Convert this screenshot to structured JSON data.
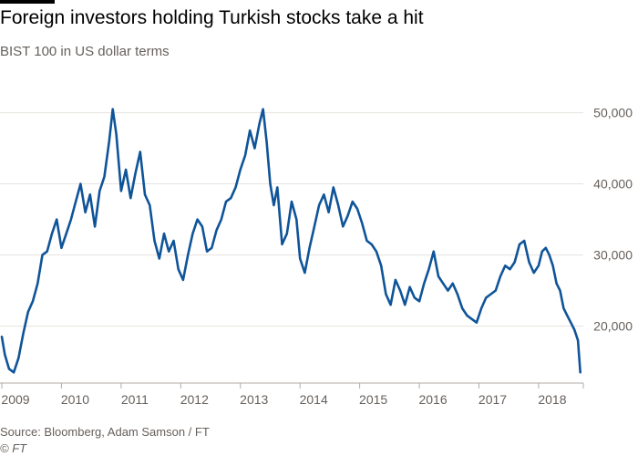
{
  "header": {
    "title": "Foreign investors holding Turkish stocks take a hit",
    "subtitle": "BIST 100 in US dollar terms"
  },
  "footer": {
    "source": "Source: Bloomberg, Adam Samson / FT",
    "credit": "© FT"
  },
  "colors": {
    "line": "#0f5499",
    "grid": "#e6e2de",
    "text": "#66605c"
  },
  "chart_data": {
    "type": "line",
    "title": "Foreign investors holding Turkish stocks take a hit",
    "subtitle": "BIST 100 in US dollar terms",
    "xlabel": "",
    "ylabel": "",
    "xlim": [
      2009.0,
      2018.75
    ],
    "ylim": [
      12000,
      52000
    ],
    "y_ticks": [
      20000,
      30000,
      40000,
      50000
    ],
    "y_tick_labels": [
      "20,000",
      "30,000",
      "40,000",
      "50,000"
    ],
    "x_ticks": [
      2009,
      2010,
      2011,
      2012,
      2013,
      2014,
      2015,
      2016,
      2017,
      2018
    ],
    "x_tick_labels": [
      "2009",
      "2010",
      "2011",
      "2012",
      "2013",
      "2014",
      "2015",
      "2016",
      "2017",
      "2018"
    ],
    "grid": true,
    "series": [
      {
        "name": "BIST 100 (USD)",
        "x": [
          2009.0,
          2009.05,
          2009.12,
          2009.2,
          2009.28,
          2009.36,
          2009.44,
          2009.52,
          2009.6,
          2009.68,
          2009.76,
          2009.84,
          2009.92,
          2010.0,
          2010.08,
          2010.16,
          2010.24,
          2010.32,
          2010.4,
          2010.48,
          2010.56,
          2010.64,
          2010.72,
          2010.8,
          2010.86,
          2010.92,
          2011.0,
          2011.08,
          2011.16,
          2011.24,
          2011.32,
          2011.4,
          2011.48,
          2011.56,
          2011.64,
          2011.72,
          2011.8,
          2011.88,
          2011.96,
          2012.04,
          2012.12,
          2012.2,
          2012.28,
          2012.36,
          2012.44,
          2012.52,
          2012.6,
          2012.68,
          2012.76,
          2012.84,
          2012.92,
          2013.0,
          2013.08,
          2013.16,
          2013.24,
          2013.32,
          2013.38,
          2013.44,
          2013.5,
          2013.56,
          2013.62,
          2013.7,
          2013.78,
          2013.86,
          2013.94,
          2014.0,
          2014.08,
          2014.16,
          2014.24,
          2014.32,
          2014.4,
          2014.48,
          2014.56,
          2014.64,
          2014.72,
          2014.8,
          2014.88,
          2014.96,
          2015.04,
          2015.12,
          2015.2,
          2015.28,
          2015.36,
          2015.44,
          2015.52,
          2015.6,
          2015.68,
          2015.76,
          2015.84,
          2015.92,
          2016.0,
          2016.08,
          2016.16,
          2016.24,
          2016.32,
          2016.4,
          2016.48,
          2016.56,
          2016.64,
          2016.72,
          2016.8,
          2016.88,
          2016.96,
          2017.04,
          2017.12,
          2017.2,
          2017.28,
          2017.36,
          2017.44,
          2017.52,
          2017.6,
          2017.68,
          2017.76,
          2017.84,
          2017.92,
          2018.0,
          2018.06,
          2018.12,
          2018.18,
          2018.24,
          2018.3,
          2018.36,
          2018.42,
          2018.48,
          2018.54,
          2018.6,
          2018.66,
          2018.7
        ],
        "y": [
          18500,
          16000,
          14000,
          13500,
          15500,
          19000,
          22000,
          23500,
          26000,
          30000,
          30500,
          33000,
          35000,
          31000,
          33000,
          35000,
          37500,
          40000,
          36000,
          38500,
          34000,
          39000,
          41000,
          46000,
          50500,
          47000,
          39000,
          42000,
          38000,
          41500,
          44500,
          38500,
          37000,
          32000,
          29500,
          33000,
          30500,
          32000,
          28000,
          26500,
          30000,
          33000,
          35000,
          34000,
          30500,
          31000,
          33500,
          35000,
          37500,
          38000,
          39500,
          42000,
          44000,
          47500,
          45000,
          48500,
          50500,
          46000,
          40000,
          37000,
          39500,
          31500,
          33000,
          37500,
          35000,
          29500,
          27500,
          31000,
          34000,
          37000,
          38500,
          36000,
          39500,
          37000,
          34000,
          35500,
          37500,
          36500,
          34500,
          32000,
          31500,
          30500,
          28500,
          24500,
          23000,
          26500,
          25000,
          23000,
          25500,
          24000,
          23500,
          26000,
          28000,
          30500,
          27000,
          26000,
          25000,
          26000,
          24500,
          22500,
          21500,
          21000,
          20500,
          22500,
          24000,
          24500,
          25000,
          27000,
          28500,
          28000,
          29000,
          31500,
          32000,
          29000,
          27500,
          28500,
          30500,
          31000,
          30000,
          28500,
          26000,
          25000,
          22500,
          21500,
          20500,
          19500,
          18000,
          13500
        ]
      }
    ]
  }
}
